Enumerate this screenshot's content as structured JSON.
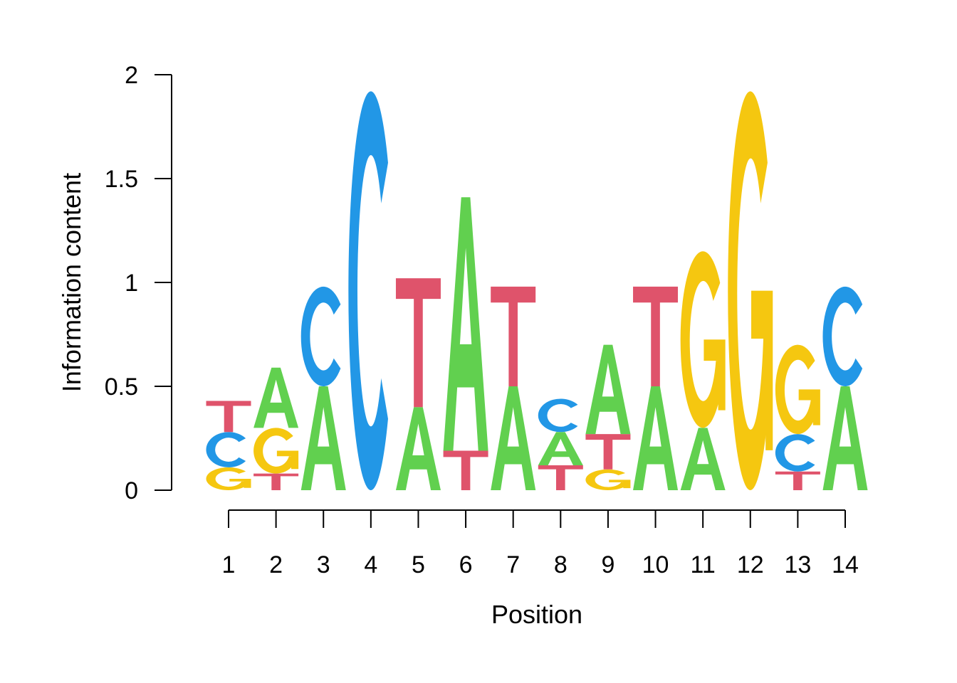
{
  "chart_data": {
    "type": "sequence-logo",
    "xlabel": "Position",
    "ylabel": "Information content",
    "ylim": [
      0,
      2
    ],
    "yticks": [
      "0",
      "0.5",
      "1",
      "1.5",
      "2"
    ],
    "yticks_values": [
      0,
      0.5,
      1,
      1.5,
      2
    ],
    "positions": [
      "1",
      "2",
      "3",
      "4",
      "5",
      "6",
      "7",
      "8",
      "9",
      "10",
      "11",
      "12",
      "13",
      "14"
    ],
    "colors": {
      "A": "#61D04F",
      "C": "#2297E6",
      "G": "#F5C710",
      "T": "#DF536B"
    },
    "stacks": [
      [
        {
          "letter": "G",
          "bits": 0.11
        },
        {
          "letter": "C",
          "bits": 0.17
        },
        {
          "letter": "T",
          "bits": 0.15
        }
      ],
      [
        {
          "letter": "T",
          "bits": 0.08
        },
        {
          "letter": "G",
          "bits": 0.22
        },
        {
          "letter": "A",
          "bits": 0.29
        }
      ],
      [
        {
          "letter": "A",
          "bits": 0.5
        },
        {
          "letter": "C",
          "bits": 0.48
        }
      ],
      [
        {
          "letter": "C",
          "bits": 1.92
        }
      ],
      [
        {
          "letter": "A",
          "bits": 0.4
        },
        {
          "letter": "T",
          "bits": 0.62
        }
      ],
      [
        {
          "letter": "T",
          "bits": 0.19
        },
        {
          "letter": "A",
          "bits": 1.22
        }
      ],
      [
        {
          "letter": "A",
          "bits": 0.5
        },
        {
          "letter": "T",
          "bits": 0.48
        }
      ],
      [
        {
          "letter": "T",
          "bits": 0.12
        },
        {
          "letter": "A",
          "bits": 0.16
        },
        {
          "letter": "C",
          "bits": 0.16
        }
      ],
      [
        {
          "letter": "G",
          "bits": 0.1
        },
        {
          "letter": "T",
          "bits": 0.17
        },
        {
          "letter": "A",
          "bits": 0.43
        }
      ],
      [
        {
          "letter": "A",
          "bits": 0.5
        },
        {
          "letter": "T",
          "bits": 0.48
        }
      ],
      [
        {
          "letter": "A",
          "bits": 0.3
        },
        {
          "letter": "G",
          "bits": 0.85
        }
      ],
      [
        {
          "letter": "G",
          "bits": 1.92
        }
      ],
      [
        {
          "letter": "T",
          "bits": 0.09
        },
        {
          "letter": "C",
          "bits": 0.18
        },
        {
          "letter": "G",
          "bits": 0.43
        }
      ],
      [
        {
          "letter": "A",
          "bits": 0.5
        },
        {
          "letter": "C",
          "bits": 0.48
        }
      ]
    ]
  }
}
